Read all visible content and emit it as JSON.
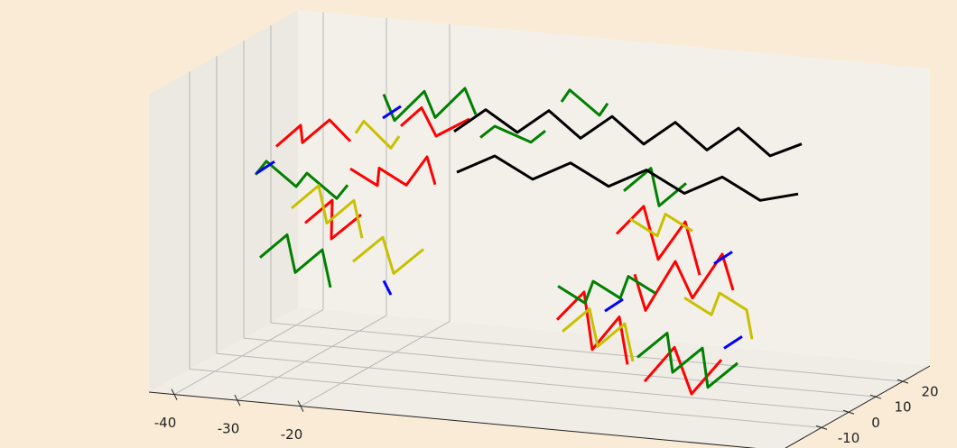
{
  "chart_data": {
    "type": "line3d",
    "xlim": [
      -44,
      56
    ],
    "ylim": [
      -25,
      30
    ],
    "zlim": [
      -30,
      30
    ],
    "xticks": [
      -40,
      -30,
      -20
    ],
    "yticks": [
      -10,
      0,
      10,
      20
    ],
    "grid": true,
    "series": [
      {
        "color": "#ff0000",
        "x": [
          -38,
          -35,
          -33,
          -30,
          -28,
          null,
          -25,
          -22,
          -20,
          -17,
          -15,
          -12,
          null,
          -30,
          -27,
          -25,
          -22,
          null,
          -20,
          -18,
          -14,
          -10,
          null,
          12,
          15,
          18,
          21,
          24,
          null,
          20,
          23,
          26,
          30,
          33,
          36,
          null,
          28,
          31,
          35,
          38,
          null,
          15,
          18,
          22,
          25,
          29
        ],
        "y": [
          8,
          10,
          6,
          9,
          12,
          null,
          5,
          8,
          4,
          7,
          10,
          6,
          null,
          0,
          3,
          -2,
          2,
          null,
          12,
          15,
          11,
          14,
          null,
          -5,
          -2,
          -6,
          -3,
          -7,
          null,
          5,
          2,
          6,
          3,
          7,
          4,
          null,
          -10,
          -6,
          -9,
          -5,
          null,
          10,
          13,
          9,
          12,
          8
        ],
        "z": [
          10,
          14,
          12,
          16,
          11,
          null,
          8,
          4,
          9,
          5,
          10,
          6,
          null,
          -2,
          2,
          -4,
          0,
          null,
          15,
          18,
          14,
          17,
          null,
          -15,
          -10,
          -20,
          -14,
          -22,
          null,
          -8,
          -14,
          -5,
          -11,
          -3,
          -9,
          null,
          -24,
          -18,
          -26,
          -20,
          null,
          -2,
          3,
          -6,
          1,
          -8
        ]
      },
      {
        "color": "#008000",
        "x": [
          -40,
          -37,
          -34,
          -31,
          -28,
          -25,
          null,
          -24,
          -21,
          -18,
          -15,
          -12,
          -9,
          null,
          -35,
          -32,
          -29,
          -26,
          -23,
          null,
          -10,
          -6,
          -2,
          2,
          null,
          10,
          13,
          16,
          19,
          22,
          25,
          null,
          26,
          29,
          32,
          35,
          38,
          41,
          null,
          14,
          17,
          20,
          23,
          null,
          2,
          5,
          8,
          11
        ],
        "y": [
          5,
          2,
          6,
          3,
          7,
          4,
          null,
          15,
          12,
          16,
          13,
          17,
          14,
          null,
          -5,
          -2,
          -6,
          -3,
          -7,
          null,
          18,
          14,
          18,
          14,
          null,
          0,
          3,
          -1,
          2,
          -2,
          1,
          null,
          -8,
          -4,
          -9,
          -5,
          -10,
          -6,
          null,
          15,
          18,
          14,
          17,
          null,
          20,
          16,
          20,
          16
        ],
        "z": [
          5,
          9,
          3,
          7,
          1,
          5,
          null,
          20,
          16,
          21,
          17,
          22,
          18,
          null,
          -8,
          -4,
          -10,
          -6,
          -12,
          null,
          12,
          16,
          12,
          16,
          null,
          -10,
          -14,
          -8,
          -12,
          -6,
          -10,
          null,
          -20,
          -16,
          -22,
          -18,
          -24,
          -20,
          null,
          5,
          9,
          3,
          7,
          null,
          20,
          24,
          18,
          22
        ]
      },
      {
        "color": "#c8c000",
        "x": [
          -33,
          -30,
          -27,
          -24,
          -21,
          null,
          -19,
          -16,
          -13,
          -10,
          null,
          -28,
          -25,
          -22,
          -19,
          null,
          12,
          15,
          18,
          21,
          24,
          null,
          30,
          33,
          36,
          39,
          42,
          null,
          18,
          21,
          24,
          27
        ],
        "y": [
          2,
          5,
          1,
          4,
          0,
          null,
          -8,
          -4,
          -7,
          -3,
          null,
          14,
          10,
          13,
          9,
          null,
          -3,
          0,
          -4,
          -1,
          -5,
          null,
          0,
          3,
          -1,
          2,
          -3,
          null,
          8,
          11,
          7,
          10
        ],
        "z": [
          0,
          4,
          -2,
          2,
          -4,
          null,
          -6,
          -2,
          -8,
          -4,
          null,
          12,
          16,
          10,
          14,
          null,
          -18,
          -14,
          -20,
          -16,
          -22,
          null,
          -10,
          -14,
          -8,
          -12,
          -16,
          null,
          2,
          -2,
          4,
          0
        ]
      },
      {
        "color": "#0000ff",
        "x": [
          -39,
          -37,
          null,
          -22,
          -20,
          null,
          -15,
          -13,
          null,
          20,
          22,
          null,
          33,
          35,
          null,
          38,
          40
        ],
        "y": [
          3,
          5,
          null,
          10,
          12,
          null,
          -6,
          -8,
          null,
          -6,
          -4,
          null,
          4,
          6,
          null,
          -4,
          -2
        ],
        "z": [
          6,
          8,
          null,
          17,
          19,
          null,
          -10,
          -12,
          null,
          -12,
          -10,
          null,
          -4,
          -2,
          null,
          -18,
          -16
        ]
      },
      {
        "color": "#000000",
        "x": [
          -15,
          -10,
          -5,
          0,
          5,
          10,
          15,
          20,
          25,
          30,
          35,
          40,
          null,
          -12,
          -6,
          0,
          6,
          12,
          18,
          24,
          30,
          36,
          42
        ],
        "y": [
          20,
          20,
          20,
          20,
          20,
          20,
          20,
          20,
          20,
          20,
          20,
          20,
          null,
          14,
          14,
          14,
          14,
          14,
          14,
          14,
          14,
          14,
          14
        ],
        "z": [
          12,
          17,
          13,
          18,
          13,
          18,
          13,
          18,
          13,
          18,
          13,
          16,
          null,
          6,
          10,
          6,
          10,
          6,
          10,
          6,
          10,
          6,
          8
        ]
      }
    ]
  }
}
